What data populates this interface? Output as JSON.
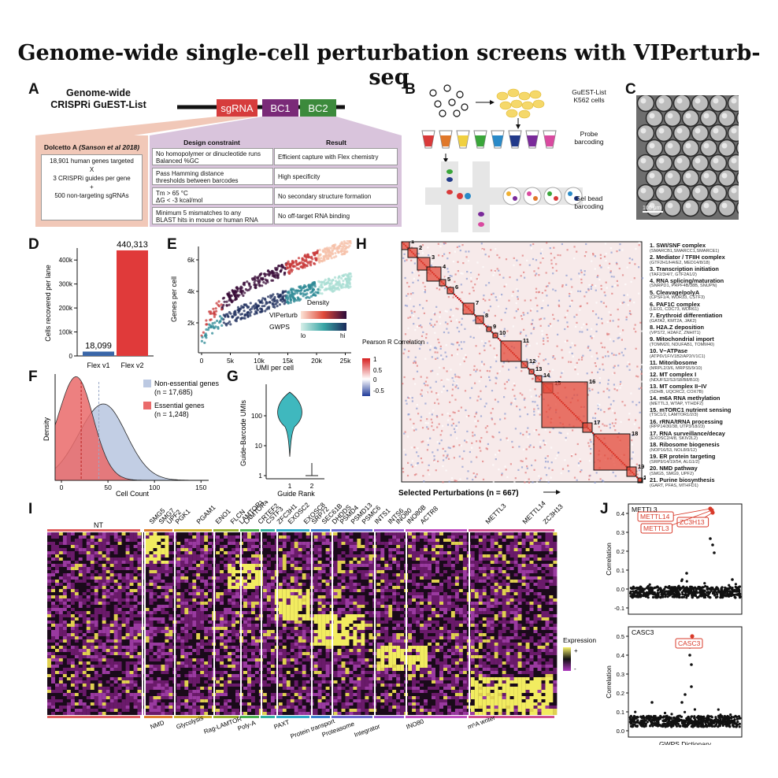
{
  "title": "Genome-wide single-cell perturbation screens with VIPerturb-seq",
  "panels": {
    "A": {
      "label": "A",
      "heading_line1": "Genome-wide",
      "heading_line2": "CRISPRi GuEST-List",
      "construct": [
        "sgRNA",
        "BC1",
        "BC2"
      ],
      "construct_colors": [
        "#d63c3c",
        "#7a2a78",
        "#3c8a3c"
      ],
      "dolcetto_title": "Dolcetto A",
      "dolcetto_cite": "(Sanson et al 2018)",
      "dolcetto_lines": [
        "18,901 human genes targeted",
        "X",
        "3 CRISPRi guides per gene",
        "+",
        "500 non-targeting sgRNAs"
      ],
      "table_headers": [
        "Design constraint",
        "Result"
      ],
      "table_rows": [
        [
          "No homopolymer or dinucleotide runs\nBalanced %GC",
          "Efficient capture with Flex chemistry"
        ],
        [
          "Pass Hamming distance\nthresholds between barcodes",
          "High specificity"
        ],
        [
          "Tm > 65 °C\nΔG < -3 kcal/mol",
          "No secondary structure formation"
        ],
        [
          "Minimum 5 mismatches to any\nBLAST hits in mouse or human RNA",
          "No off-target RNA binding"
        ]
      ]
    },
    "B": {
      "label": "B",
      "steps": [
        "GuEST-List\nK562 cells",
        "Probe\nbarcoding",
        "Gel bead\nbarcoding"
      ]
    },
    "C": {
      "label": "C",
      "scalebar": "100 μm"
    },
    "D": {
      "label": "D",
      "chart_data": {
        "type": "bar",
        "categories": [
          "Flex v1",
          "Flex v2"
        ],
        "values": [
          18099,
          440313
        ],
        "value_labels": [
          "18,099",
          "440,313"
        ],
        "colors": [
          "#3a66a8",
          "#e03a3a"
        ],
        "ylabel": "Cells recovered per lane",
        "yticks": [
          "0",
          "100k",
          "200k",
          "300k",
          "400k"
        ],
        "ylim": [
          0,
          450000
        ]
      }
    },
    "E": {
      "label": "E",
      "chart_data": {
        "type": "scatter",
        "xlabel": "UMI per cell",
        "ylabel": "Genes per cell",
        "xticks": [
          "0",
          "5k",
          "10k",
          "15k",
          "20k",
          "25k"
        ],
        "yticks": [
          "2k",
          "4k",
          "6k"
        ],
        "series": [
          {
            "name": "VIPerturb"
          },
          {
            "name": "GWPS"
          }
        ],
        "legend_title": "Density",
        "legend_lo": "lo",
        "legend_hi": "hi"
      }
    },
    "F": {
      "label": "F",
      "chart_data": {
        "type": "area",
        "xlabel": "Cell Count",
        "ylabel": "Density",
        "xticks": [
          "0",
          "50",
          "100",
          "150"
        ],
        "series": [
          {
            "name": "Non-essential genes",
            "n": "(n = 17,685)",
            "color": "#bcc9e2"
          },
          {
            "name": "Essential genes",
            "n": "(n = 1,248)",
            "color": "#ea6b6b"
          }
        ]
      }
    },
    "G": {
      "label": "G",
      "chart_data": {
        "type": "violin",
        "xlabel": "Guide Rank",
        "ylabel": "Guide-Barcode UMIs",
        "xticks": [
          "1",
          "2"
        ],
        "yticks": [
          "1",
          "10",
          "100"
        ]
      }
    },
    "H": {
      "label": "H",
      "xlabel": "Selected Perturbations (n = 667)",
      "legend_title": "Pearson R\nCorrelation",
      "legend_ticks": [
        "1",
        "0.5",
        "0",
        "-0.5"
      ],
      "complexes": [
        {
          "name": "1. SWI/SNF complex",
          "genes": "(SMARCB1,SMARCC1,SMARCE1)"
        },
        {
          "name": "2. Mediator / TFIIH complex",
          "genes": "(GTF2H1/H4/E2, MED14/8/18)"
        },
        {
          "name": "3. Transcription initiation",
          "genes": "(TAF2/3/4/7, GTF2A1/2)"
        },
        {
          "name": "4. RNA splicing/maturation",
          "genes": "(SNRPD1, PRPF4B/38B, SNUPN)"
        },
        {
          "name": "5. Cleavage/polyA",
          "genes": "(CPSF1/4, WDR33, CSTF3)"
        },
        {
          "name": "6. PAF1C complex",
          "genes": "(LEO1, CDC73, WDR61)"
        },
        {
          "name": "7. Erythroid differentiation",
          "genes": "(GATA2, KMT2A, JAK2)"
        },
        {
          "name": "8. H2A.Z deposition",
          "genes": "(VPS72, H2AFZ, ZNHIT1)"
        },
        {
          "name": "9. Mitochondrial import",
          "genes": "(TOMM20, NDUFAB1, TOMM40)"
        },
        {
          "name": "10. V−ATPase",
          "genes": "(ATP6V1F/V1B2/AP2/V1C1)"
        },
        {
          "name": "11. Mitoribosome",
          "genes": "(MRPL2/3/6, MRPS5/9/10)"
        },
        {
          "name": "12. MT complex I",
          "genes": "(NDUFS2/S3/S8/B8/B10)"
        },
        {
          "name": "13. MT complex II−IV",
          "genes": "(SDHB, UQCRC2, COX7B)"
        },
        {
          "name": "14. m6A RNA methylation",
          "genes": "(METTL3, WTAP, YTHDF2)"
        },
        {
          "name": "15. mTORC1 nutrient sensing",
          "genes": "(TSC1/2, LAMTOR1/2/3)"
        },
        {
          "name": "16. rRNA/tRNA processing",
          "genes": "(RPP14/30/38, UTP3/18/23)"
        },
        {
          "name": "17. RNA surveillance/decay",
          "genes": "(EXOSC2/4/8, SKIV2L2)"
        },
        {
          "name": "18. Ribosome biogenesis",
          "genes": "(NOP16/53, NOL8/9/12)"
        },
        {
          "name": "19. ER protein targeting",
          "genes": "(SRP9/14/19/54, ALG1/2)"
        },
        {
          "name": "20. NMD pathway",
          "genes": "(SMG5, SMG9, UPF2)"
        },
        {
          "name": "21. Purine biosynthesis",
          "genes": "(GART, PFAS, MTHFD1)"
        }
      ]
    },
    "I": {
      "label": "I",
      "top_genes": [
        "NT",
        "SMG5",
        "SMG7",
        "UPF2",
        "PGK1",
        "PGAM1",
        "ENO1",
        "FLCN",
        "LAMTOR1",
        "LAMTOR4",
        "CRTEF2",
        "CSTF3",
        "ZFC3H1",
        "EXOSC2",
        "EXOSC8",
        "SRP72",
        "SEC61B",
        "DHDDS",
        "PSMD4",
        "PSMD13",
        "PSMC6",
        "INTS1",
        "INTS6",
        "INO80",
        "INO80B",
        "ACTR8",
        "METTL3",
        "METTL14",
        "ZC3H13"
      ],
      "groups": [
        "NMD",
        "Glycolysis",
        "Rag-LAMTOR",
        "Poly-A",
        "PAXT",
        "Protein transport",
        "Proteasome",
        "Integrator",
        "INO80",
        "m⁶A writer"
      ],
      "legend_title": "Expression",
      "legend_hi": "+",
      "legend_lo": "-"
    },
    "J": {
      "label": "J",
      "chart_data": [
        {
          "type": "scatter",
          "title": "METTL3",
          "ylabel": "Correlation",
          "yticks": [
            "0.4",
            "0.3",
            "0.2",
            "0.1",
            "0.0",
            "-0.1"
          ],
          "highlighted": [
            "METTL14",
            "ZC3H13",
            "METTL3"
          ]
        },
        {
          "type": "scatter",
          "title": "CASC3",
          "ylabel": "Correlation",
          "xlabel": "GWPS Dictionary",
          "yticks": [
            "0.5",
            "0.4",
            "0.3",
            "0.2",
            "0.1",
            "0.0"
          ],
          "highlighted": [
            "CASC3"
          ]
        }
      ]
    }
  }
}
